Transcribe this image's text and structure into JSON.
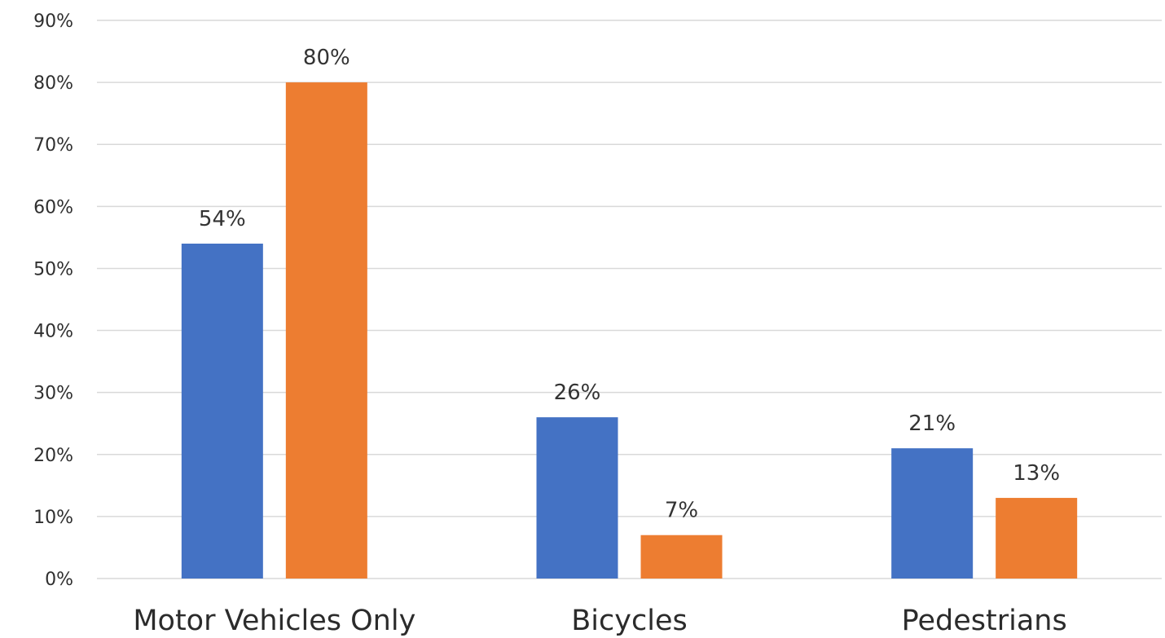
{
  "chart_data": {
    "type": "bar",
    "categories": [
      "Motor Vehicles Only",
      "Bicycles",
      "Pedestrians"
    ],
    "series": [
      {
        "values": [
          54,
          26,
          21
        ],
        "labels": [
          "54%",
          "26%",
          "21%"
        ],
        "color": "#4472C4"
      },
      {
        "values": [
          80,
          7,
          13
        ],
        "labels": [
          "80%",
          "7%",
          "13%"
        ],
        "color": "#ED7D31"
      }
    ],
    "yticks": [
      "0%",
      "10%",
      "20%",
      "30%",
      "40%",
      "50%",
      "60%",
      "70%",
      "80%",
      "90%"
    ],
    "ylim": [
      0,
      90
    ],
    "ytick_step": 10,
    "grid": true,
    "grid_color": "#d9d9d9",
    "title": "",
    "xlabel": "",
    "ylabel": ""
  }
}
